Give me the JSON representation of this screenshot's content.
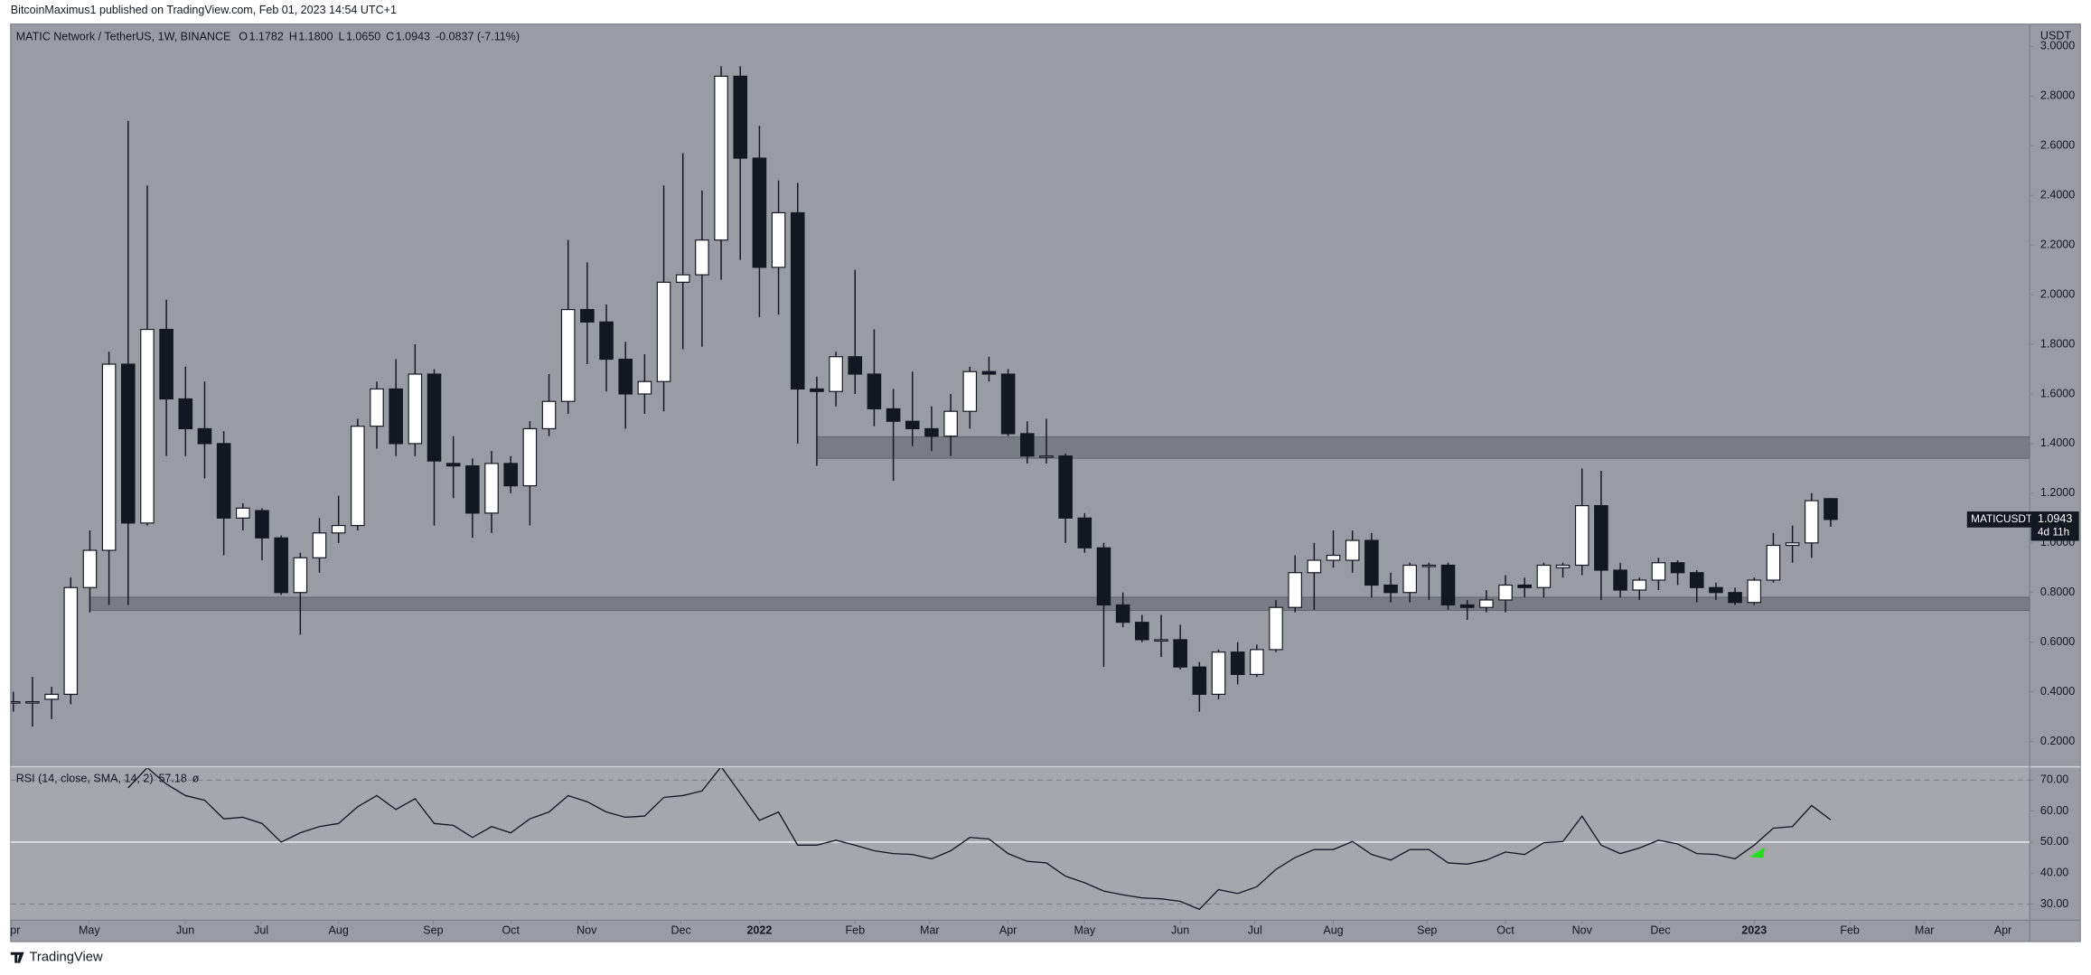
{
  "header": "BitcoinMaximus1 published on TradingView.com, Feb 01, 2023 14:54 UTC+1",
  "footer": "TradingView",
  "chart_data": {
    "type": "candlestick",
    "symbol_title": "MATIC Network / TetherUS, 1W, BINANCE",
    "legend": {
      "o_key": "O",
      "open": "1.1782",
      "h_key": "H",
      "high": "1.1800",
      "l_key": "L",
      "low": "1.0650",
      "c_key": "C",
      "close": "1.0943",
      "change": "-0.0837 (-7.11%)"
    },
    "axis_unit": "USDT",
    "price_label": {
      "symbol": "MATICUSDT",
      "countdown": "4d 11h"
    },
    "up_color": "#ffffff",
    "down_color": "#131722",
    "ohlc": [
      [
        0.36,
        0.4,
        0.32,
        0.36
      ],
      [
        0.36,
        0.46,
        0.26,
        0.36
      ],
      [
        0.37,
        0.42,
        0.29,
        0.39
      ],
      [
        0.39,
        0.86,
        0.35,
        0.82
      ],
      [
        0.82,
        1.05,
        0.72,
        0.97
      ],
      [
        0.97,
        1.77,
        0.75,
        1.72
      ],
      [
        1.72,
        2.7,
        0.75,
        1.08
      ],
      [
        1.08,
        2.44,
        1.07,
        1.86
      ],
      [
        1.86,
        1.98,
        1.35,
        1.58
      ],
      [
        1.58,
        1.71,
        1.35,
        1.46
      ],
      [
        1.46,
        1.65,
        1.26,
        1.4
      ],
      [
        1.4,
        1.45,
        0.95,
        1.1
      ],
      [
        1.1,
        1.16,
        1.05,
        1.14
      ],
      [
        1.13,
        1.14,
        0.93,
        1.02
      ],
      [
        1.02,
        1.03,
        0.79,
        0.8
      ],
      [
        0.8,
        0.96,
        0.63,
        0.94
      ],
      [
        0.94,
        1.1,
        0.88,
        1.04
      ],
      [
        1.04,
        1.19,
        1.0,
        1.07
      ],
      [
        1.07,
        1.5,
        1.05,
        1.47
      ],
      [
        1.47,
        1.65,
        1.38,
        1.62
      ],
      [
        1.62,
        1.74,
        1.35,
        1.4
      ],
      [
        1.4,
        1.8,
        1.35,
        1.68
      ],
      [
        1.68,
        1.7,
        1.07,
        1.33
      ],
      [
        1.32,
        1.43,
        1.18,
        1.31
      ],
      [
        1.31,
        1.34,
        1.02,
        1.12
      ],
      [
        1.12,
        1.37,
        1.04,
        1.32
      ],
      [
        1.32,
        1.35,
        1.2,
        1.23
      ],
      [
        1.23,
        1.49,
        1.07,
        1.46
      ],
      [
        1.46,
        1.68,
        1.43,
        1.57
      ],
      [
        1.57,
        2.22,
        1.52,
        1.94
      ],
      [
        1.94,
        2.13,
        1.72,
        1.89
      ],
      [
        1.89,
        1.96,
        1.61,
        1.74
      ],
      [
        1.74,
        1.81,
        1.46,
        1.6
      ],
      [
        1.6,
        1.76,
        1.52,
        1.65
      ],
      [
        1.65,
        2.44,
        1.53,
        2.05
      ],
      [
        2.05,
        2.57,
        1.78,
        2.08
      ],
      [
        2.08,
        2.42,
        1.79,
        2.22
      ],
      [
        2.22,
        2.92,
        2.06,
        2.88
      ],
      [
        2.88,
        2.92,
        2.14,
        2.55
      ],
      [
        2.55,
        2.68,
        1.91,
        2.11
      ],
      [
        2.11,
        2.46,
        1.92,
        2.33
      ],
      [
        2.33,
        2.45,
        1.4,
        1.62
      ],
      [
        1.62,
        1.67,
        1.31,
        1.61
      ],
      [
        1.61,
        1.77,
        1.55,
        1.75
      ],
      [
        1.75,
        2.1,
        1.6,
        1.68
      ],
      [
        1.68,
        1.86,
        1.47,
        1.54
      ],
      [
        1.54,
        1.62,
        1.25,
        1.49
      ],
      [
        1.49,
        1.69,
        1.39,
        1.46
      ],
      [
        1.46,
        1.55,
        1.37,
        1.43
      ],
      [
        1.43,
        1.6,
        1.35,
        1.53
      ],
      [
        1.53,
        1.71,
        1.46,
        1.69
      ],
      [
        1.69,
        1.75,
        1.65,
        1.68
      ],
      [
        1.68,
        1.7,
        1.43,
        1.44
      ],
      [
        1.44,
        1.49,
        1.32,
        1.35
      ],
      [
        1.35,
        1.5,
        1.32,
        1.35
      ],
      [
        1.35,
        1.36,
        1.0,
        1.1
      ],
      [
        1.1,
        1.12,
        0.96,
        0.98
      ],
      [
        0.98,
        1.0,
        0.5,
        0.75
      ],
      [
        0.75,
        0.8,
        0.66,
        0.68
      ],
      [
        0.68,
        0.71,
        0.6,
        0.61
      ],
      [
        0.61,
        0.71,
        0.54,
        0.61
      ],
      [
        0.61,
        0.67,
        0.49,
        0.5
      ],
      [
        0.5,
        0.52,
        0.32,
        0.39
      ],
      [
        0.39,
        0.57,
        0.37,
        0.56
      ],
      [
        0.56,
        0.6,
        0.43,
        0.47
      ],
      [
        0.47,
        0.59,
        0.46,
        0.57
      ],
      [
        0.57,
        0.77,
        0.56,
        0.74
      ],
      [
        0.74,
        0.95,
        0.72,
        0.88
      ],
      [
        0.88,
        1.0,
        0.73,
        0.93
      ],
      [
        0.93,
        1.05,
        0.9,
        0.95
      ],
      [
        0.93,
        1.05,
        0.88,
        1.01
      ],
      [
        1.01,
        1.04,
        0.78,
        0.83
      ],
      [
        0.83,
        0.88,
        0.76,
        0.8
      ],
      [
        0.8,
        0.92,
        0.76,
        0.91
      ],
      [
        0.91,
        0.92,
        0.77,
        0.91
      ],
      [
        0.91,
        0.92,
        0.73,
        0.75
      ],
      [
        0.75,
        0.77,
        0.69,
        0.74
      ],
      [
        0.74,
        0.81,
        0.72,
        0.77
      ],
      [
        0.77,
        0.87,
        0.72,
        0.83
      ],
      [
        0.83,
        0.86,
        0.78,
        0.82
      ],
      [
        0.82,
        0.92,
        0.78,
        0.91
      ],
      [
        0.9,
        0.92,
        0.86,
        0.91
      ],
      [
        0.91,
        1.3,
        0.87,
        1.15
      ],
      [
        1.15,
        1.29,
        0.77,
        0.89
      ],
      [
        0.89,
        0.92,
        0.78,
        0.81
      ],
      [
        0.81,
        0.86,
        0.77,
        0.85
      ],
      [
        0.85,
        0.94,
        0.81,
        0.92
      ],
      [
        0.92,
        0.93,
        0.83,
        0.88
      ],
      [
        0.88,
        0.89,
        0.76,
        0.82
      ],
      [
        0.82,
        0.84,
        0.77,
        0.8
      ],
      [
        0.8,
        0.82,
        0.75,
        0.76
      ],
      [
        0.76,
        0.86,
        0.75,
        0.85
      ],
      [
        0.85,
        1.04,
        0.84,
        0.99
      ],
      [
        0.99,
        1.07,
        0.92,
        1.0
      ],
      [
        1.0,
        1.2,
        0.94,
        1.17
      ],
      [
        1.1782,
        1.18,
        1.065,
        1.0943
      ]
    ],
    "zones": [
      {
        "low": 1.341,
        "high": 1.427,
        "start": 42
      },
      {
        "low": 0.728,
        "high": 0.781,
        "start": 4
      }
    ],
    "xlim": [
      -0.14,
      105.4
    ],
    "xticks": [
      {
        "value": -0.1,
        "label": "Apr"
      },
      {
        "value": 3.97,
        "label": "May"
      },
      {
        "value": 8.99,
        "label": "Jun"
      },
      {
        "value": 12.96,
        "label": "Jul"
      },
      {
        "value": 17.0,
        "label": "Aug"
      },
      {
        "value": 21.95,
        "label": "Sep"
      },
      {
        "value": 26.0,
        "label": "Oct"
      },
      {
        "value": 29.97,
        "label": "Nov"
      },
      {
        "value": 34.9,
        "label": "Dec"
      },
      {
        "value": 39.0,
        "label": "2022"
      },
      {
        "value": 44.0,
        "label": "Feb"
      },
      {
        "value": 47.9,
        "label": "Mar"
      },
      {
        "value": 52.0,
        "label": "Apr"
      },
      {
        "value": 56.0,
        "label": "May"
      },
      {
        "value": 61.0,
        "label": "Jun"
      },
      {
        "value": 64.9,
        "label": "Jul"
      },
      {
        "value": 69.0,
        "label": "Aug"
      },
      {
        "value": 73.9,
        "label": "Sep"
      },
      {
        "value": 78.0,
        "label": "Oct"
      },
      {
        "value": 82.0,
        "label": "Nov"
      },
      {
        "value": 86.1,
        "label": "Dec"
      },
      {
        "value": 91.0,
        "label": "2023"
      },
      {
        "value": 96.0,
        "label": "Feb"
      },
      {
        "value": 99.9,
        "label": "Mar"
      },
      {
        "value": 104.0,
        "label": "Apr"
      }
    ],
    "ylim": [
      0.103,
      3.09
    ],
    "yticks": [
      {
        "value": 0.2,
        "label": "0.2000"
      },
      {
        "value": 0.4,
        "label": "0.4000"
      },
      {
        "value": 0.6,
        "label": "0.6000"
      },
      {
        "value": 0.8,
        "label": "0.8000"
      },
      {
        "value": 1.0,
        "label": "1.0000"
      },
      {
        "value": 1.2,
        "label": "1.2000"
      },
      {
        "value": 1.4,
        "label": "1.4000"
      },
      {
        "value": 1.6,
        "label": "1.6000"
      },
      {
        "value": 1.8,
        "label": "1.8000"
      },
      {
        "value": 2.0,
        "label": "2.0000"
      },
      {
        "value": 2.2,
        "label": "2.2000"
      },
      {
        "value": 2.4,
        "label": "2.4000"
      },
      {
        "value": 2.6,
        "label": "2.6000"
      },
      {
        "value": 2.8,
        "label": "2.8000"
      },
      {
        "value": 3.0,
        "label": "3.0000"
      }
    ],
    "rsi": {
      "title": "RSI (14, close, SMA, 14, 2)",
      "value_label": "57.18",
      "symbol": "ø",
      "color": "#131722",
      "values": [
        null,
        null,
        null,
        null,
        null,
        null,
        67.5,
        74,
        68.7,
        65,
        63.5,
        57.5,
        58,
        56,
        50,
        53,
        55,
        56,
        61.4,
        65,
        60.5,
        64,
        56,
        55.4,
        51.5,
        55,
        53,
        57.5,
        59.7,
        65,
        63,
        59.7,
        58,
        58.4,
        64.4,
        65,
        66.5,
        74.3,
        65.7,
        57,
        59.7,
        49,
        49,
        50.6,
        49,
        47.2,
        46.3,
        46,
        44.6,
        47.2,
        51.5,
        51,
        46.3,
        43.8,
        43.3,
        39,
        36.9,
        34.2,
        33,
        32,
        31.7,
        30.9,
        28.3,
        34.7,
        33.4,
        35.6,
        41.2,
        45,
        47.6,
        47.6,
        50.2,
        46,
        44.2,
        47.6,
        47.6,
        43.3,
        42.9,
        44.2,
        46.8,
        46,
        49.8,
        50.2,
        58.4,
        49,
        46.3,
        48.1,
        50.6,
        49.4,
        46.3,
        46,
        44.6,
        49,
        54.5,
        55,
        61.8,
        57.18
      ],
      "ylim": [
        24.8,
        73.4
      ],
      "yticks": [
        {
          "value": 30,
          "label": "30.00"
        },
        {
          "value": 40,
          "label": "40.00"
        },
        {
          "value": 50,
          "label": "50.00"
        },
        {
          "value": 60,
          "label": "60.00"
        },
        {
          "value": 70,
          "label": "70.00"
        }
      ],
      "upper_band": 70,
      "middle_band": 50,
      "lower_band": 30
    }
  }
}
